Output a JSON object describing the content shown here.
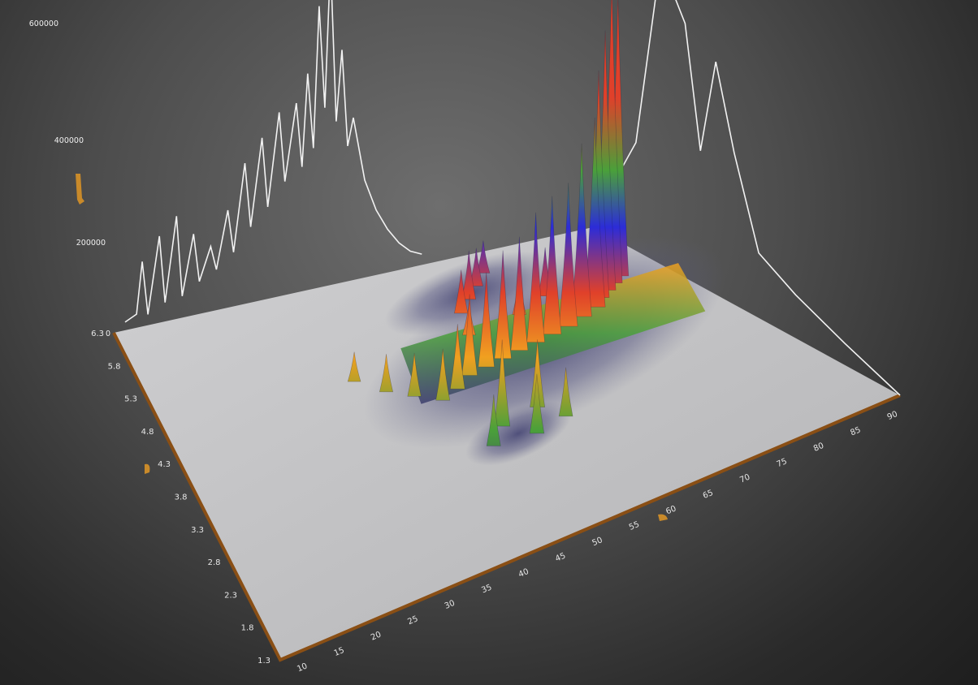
{
  "chart_data": {
    "type": "surface3d",
    "title": "",
    "colors": {
      "background": "#4a4a4a",
      "floor": "#c2c2c4",
      "floor_edge": "#8a4f15",
      "baseline": "#3c3c6e",
      "profile_line": "#f2f2f2",
      "accent_marker": "#c98a2a"
    },
    "colormap": [
      "#3c3c6e",
      "#4aa03a",
      "#f0a020",
      "#e0402a",
      "#2c2cd8"
    ],
    "x_axis": {
      "label": "",
      "ticks": [
        "10",
        "15",
        "20",
        "25",
        "30",
        "35",
        "40",
        "45",
        "50",
        "55",
        "60",
        "65",
        "70",
        "75",
        "80",
        "85",
        "90"
      ],
      "range": [
        8,
        92
      ]
    },
    "y_axis": {
      "label": "",
      "ticks": [
        "1.3",
        "1.8",
        "2.3",
        "2.8",
        "3.3",
        "3.8",
        "4.3",
        "4.8",
        "5.3",
        "5.8",
        "6.3"
      ],
      "range": [
        1.3,
        6.3
      ]
    },
    "z_axis": {
      "label": "",
      "ticks": [
        "0",
        "200000",
        "400000",
        "600000"
      ],
      "range": [
        0,
        600000
      ]
    },
    "peaks": [
      {
        "x": 48,
        "y": 3.05,
        "z": 95000
      },
      {
        "x": 51,
        "y": 3.3,
        "z": 160000
      },
      {
        "x": 54,
        "y": 3.0,
        "z": 110000
      },
      {
        "x": 57,
        "y": 3.4,
        "z": 125000
      },
      {
        "x": 59,
        "y": 3.1,
        "z": 90000
      },
      {
        "x": 38,
        "y": 4.7,
        "z": 55000
      },
      {
        "x": 41,
        "y": 4.4,
        "z": 70000
      },
      {
        "x": 44,
        "y": 4.2,
        "z": 80000
      },
      {
        "x": 47,
        "y": 4.0,
        "z": 95000
      },
      {
        "x": 50,
        "y": 4.1,
        "z": 120000
      },
      {
        "x": 53,
        "y": 4.25,
        "z": 150000
      },
      {
        "x": 56,
        "y": 4.3,
        "z": 175000
      },
      {
        "x": 59,
        "y": 4.35,
        "z": 200000
      },
      {
        "x": 62,
        "y": 4.4,
        "z": 210000
      },
      {
        "x": 65,
        "y": 4.45,
        "z": 240000
      },
      {
        "x": 68,
        "y": 4.5,
        "z": 255000
      },
      {
        "x": 71,
        "y": 4.55,
        "z": 265000
      },
      {
        "x": 74,
        "y": 4.65,
        "z": 320000
      },
      {
        "x": 77,
        "y": 4.75,
        "z": 350000
      },
      {
        "x": 79,
        "y": 4.9,
        "z": 420000
      },
      {
        "x": 81,
        "y": 5.0,
        "z": 480000
      },
      {
        "x": 83,
        "y": 5.1,
        "z": 560000
      },
      {
        "x": 85,
        "y": 5.2,
        "z": 520000
      },
      {
        "x": 60,
        "y": 5.3,
        "z": 80000
      },
      {
        "x": 63,
        "y": 5.5,
        "z": 90000
      },
      {
        "x": 66,
        "y": 5.7,
        "z": 70000
      },
      {
        "x": 69,
        "y": 5.9,
        "z": 60000
      },
      {
        "x": 58,
        "y": 4.9,
        "z": 60000
      },
      {
        "x": 67,
        "y": 5.0,
        "z": 75000
      },
      {
        "x": 73,
        "y": 5.2,
        "z": 90000
      }
    ],
    "ridge": {
      "x_start": 44,
      "x_end": 88,
      "y_center": 4.4,
      "z": 60000
    },
    "profile_x": [
      {
        "x": 10,
        "z": 15000
      },
      {
        "x": 12,
        "z": 25000
      },
      {
        "x": 13,
        "z": 120000
      },
      {
        "x": 14,
        "z": 20000
      },
      {
        "x": 16,
        "z": 160000
      },
      {
        "x": 17,
        "z": 35000
      },
      {
        "x": 19,
        "z": 190000
      },
      {
        "x": 20,
        "z": 40000
      },
      {
        "x": 22,
        "z": 150000
      },
      {
        "x": 23,
        "z": 60000
      },
      {
        "x": 25,
        "z": 120000
      },
      {
        "x": 26,
        "z": 75000
      },
      {
        "x": 28,
        "z": 180000
      },
      {
        "x": 29,
        "z": 100000
      },
      {
        "x": 31,
        "z": 260000
      },
      {
        "x": 32,
        "z": 140000
      },
      {
        "x": 34,
        "z": 300000
      },
      {
        "x": 35,
        "z": 170000
      },
      {
        "x": 37,
        "z": 340000
      },
      {
        "x": 38,
        "z": 210000
      },
      {
        "x": 40,
        "z": 350000
      },
      {
        "x": 41,
        "z": 230000
      },
      {
        "x": 42,
        "z": 400000
      },
      {
        "x": 43,
        "z": 260000
      },
      {
        "x": 44,
        "z": 520000
      },
      {
        "x": 45,
        "z": 330000
      },
      {
        "x": 46,
        "z": 600000
      },
      {
        "x": 47,
        "z": 300000
      },
      {
        "x": 48,
        "z": 430000
      },
      {
        "x": 49,
        "z": 250000
      },
      {
        "x": 50,
        "z": 300000
      },
      {
        "x": 52,
        "z": 180000
      },
      {
        "x": 54,
        "z": 120000
      },
      {
        "x": 56,
        "z": 80000
      },
      {
        "x": 58,
        "z": 50000
      },
      {
        "x": 60,
        "z": 30000
      },
      {
        "x": 62,
        "z": 20000
      }
    ],
    "profile_y": [
      {
        "y": 1.3,
        "z": 0
      },
      {
        "y": 2.2,
        "z": 40000
      },
      {
        "y": 3.0,
        "z": 80000
      },
      {
        "y": 3.6,
        "z": 120000
      },
      {
        "y": 4.0,
        "z": 280000
      },
      {
        "y": 4.3,
        "z": 430000
      },
      {
        "y": 4.55,
        "z": 250000
      },
      {
        "y": 4.8,
        "z": 470000
      },
      {
        "y": 5.2,
        "z": 560000
      },
      {
        "y": 5.6,
        "z": 200000
      },
      {
        "y": 5.9,
        "z": 120000
      },
      {
        "y": 6.1,
        "z": 80000
      },
      {
        "y": 6.3,
        "z": 30000
      }
    ],
    "grid": false,
    "legend": "none"
  }
}
